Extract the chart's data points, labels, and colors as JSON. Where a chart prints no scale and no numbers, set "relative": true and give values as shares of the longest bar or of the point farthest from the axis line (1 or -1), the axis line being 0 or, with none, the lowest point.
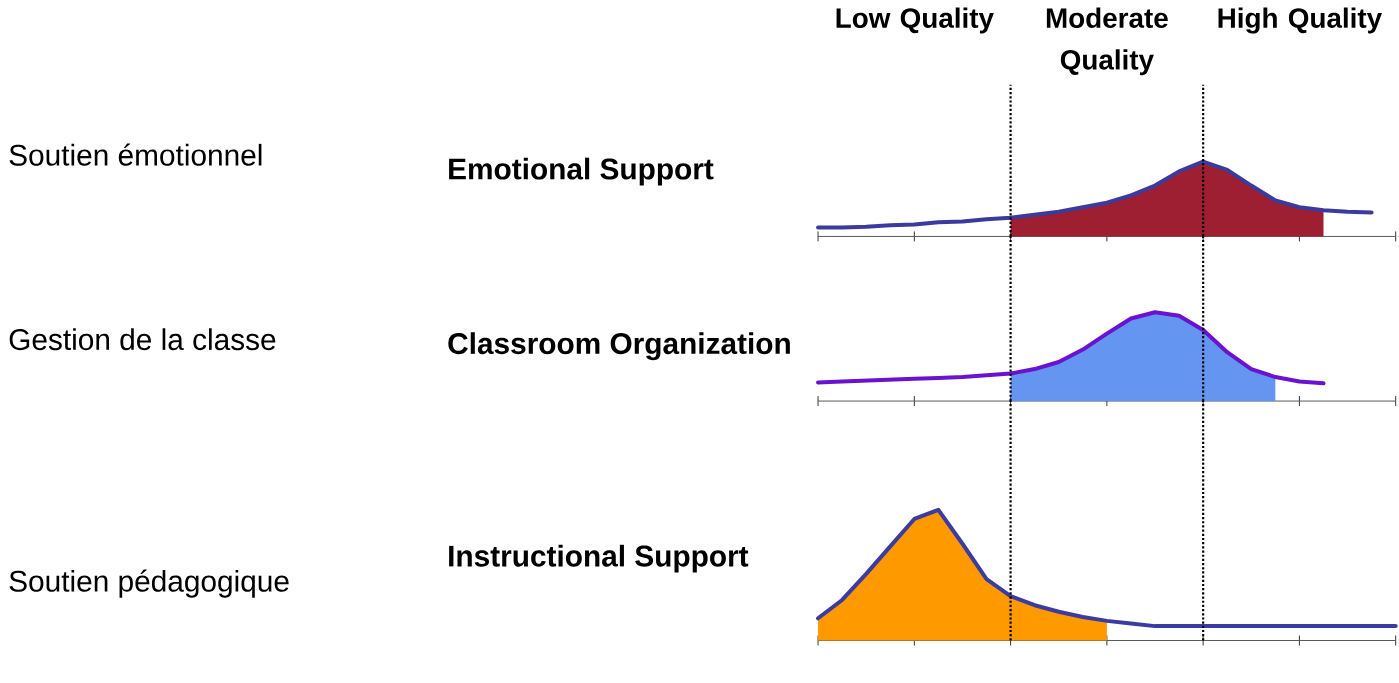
{
  "chart_data": [
    {
      "type": "line",
      "title": "Emotional Support",
      "ylabel": "Soutien émotionnel",
      "relative": true,
      "categories": [
        null,
        null,
        null,
        null,
        null,
        null,
        null,
        null,
        null,
        null,
        null,
        null,
        null,
        null,
        null,
        null,
        null,
        null,
        null,
        null,
        null,
        null,
        null,
        null,
        null
      ],
      "series": [
        {
          "type": "area",
          "color": "#9e1f32",
          "values": [
            null,
            null,
            null,
            null,
            null,
            null,
            null,
            null,
            0.25,
            0.29,
            0.33,
            0.39,
            0.45,
            0.55,
            0.68,
            0.87,
            1.0,
            0.89,
            0.68,
            0.48,
            0.39,
            0.35,
            null,
            null,
            null
          ]
        },
        {
          "color": "#3d3a9e",
          "values": [
            0.12,
            0.12,
            0.13,
            0.15,
            0.16,
            0.19,
            0.2,
            0.23,
            0.25,
            0.29,
            0.33,
            0.39,
            0.45,
            0.55,
            0.68,
            0.87,
            1.0,
            0.89,
            0.68,
            0.48,
            0.39,
            0.35,
            0.33,
            0.32,
            null
          ]
        }
      ],
      "annotations": [
        "Low Quality",
        "Moderate Quality",
        "High Quality"
      ]
    },
    {
      "type": "line",
      "title": "Classroom Organization",
      "ylabel": "Gestion de la classe",
      "relative": true,
      "categories": [
        null,
        null,
        null,
        null,
        null,
        null,
        null,
        null,
        null,
        null,
        null,
        null,
        null,
        null,
        null,
        null,
        null,
        null,
        null,
        null,
        null,
        null,
        null,
        null,
        null
      ],
      "series": [
        {
          "type": "area",
          "color": "#6495f0",
          "values": [
            null,
            null,
            null,
            null,
            null,
            null,
            null,
            null,
            0.31,
            0.36,
            0.44,
            0.58,
            0.76,
            0.93,
            1.0,
            0.96,
            0.8,
            0.55,
            0.36,
            0.27,
            null,
            null,
            null,
            null,
            null
          ]
        },
        {
          "color": "#6a12d0",
          "values": [
            0.21,
            0.22,
            0.23,
            0.24,
            0.25,
            0.26,
            0.27,
            0.29,
            0.31,
            0.36,
            0.44,
            0.58,
            0.76,
            0.93,
            1.0,
            0.96,
            0.8,
            0.55,
            0.36,
            0.27,
            0.22,
            0.2,
            null,
            null,
            null
          ]
        }
      ]
    },
    {
      "type": "line",
      "title": "Instructional Support",
      "ylabel": "Soutien pédagogique",
      "relative": true,
      "categories": [
        null,
        null,
        null,
        null,
        null,
        null,
        null,
        null,
        null,
        null,
        null,
        null,
        null,
        null,
        null,
        null,
        null,
        null,
        null,
        null,
        null,
        null,
        null,
        null,
        null
      ],
      "series": [
        {
          "type": "area",
          "color": "#ff9900",
          "values": [
            0.17,
            0.31,
            0.51,
            0.72,
            0.93,
            1.0,
            0.74,
            0.47,
            0.34,
            0.27,
            0.22,
            0.18,
            0.15,
            null,
            null,
            null,
            null,
            null,
            null,
            null,
            null,
            null,
            null,
            null,
            null
          ]
        },
        {
          "color": "#3b3ba0",
          "values": [
            0.17,
            0.31,
            0.51,
            0.72,
            0.93,
            1.0,
            0.74,
            0.47,
            0.34,
            0.27,
            0.22,
            0.18,
            0.15,
            0.13,
            0.11,
            0.11,
            0.11,
            0.11,
            0.11,
            0.11,
            0.11,
            0.11,
            0.11,
            0.11,
            0.11
          ]
        }
      ]
    }
  ]
}
